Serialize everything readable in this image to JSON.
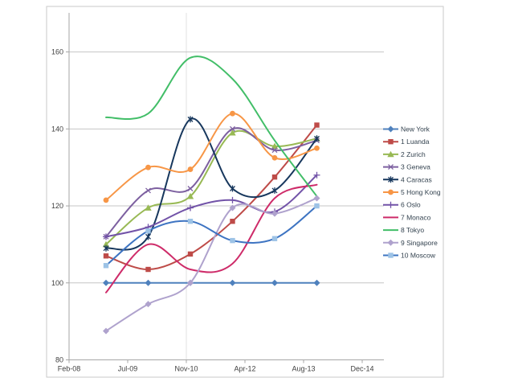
{
  "window": {
    "background": "#FFFFFF",
    "chart_border_color": "#C9C9C9",
    "axis_line_color": "#A6A6A6",
    "gridline_color": "#C6C6C6",
    "faint_vertical_gridline_color": "#E0E0E0",
    "text_color": "#3F3F3F",
    "legend_text_color": "#33424F"
  },
  "chart_data": {
    "type": "line",
    "title": "",
    "xlabel": "",
    "ylabel": "",
    "grid": "horizontal",
    "legend_position": "right",
    "x_axis": {
      "tick_labels": [
        "Feb-08",
        "Jul-09",
        "Nov-10",
        "Apr-12",
        "Aug-13",
        "Dec-14"
      ]
    },
    "y_axis": {
      "tick_labels": [
        "80",
        "100",
        "120",
        "140",
        "160"
      ],
      "tick_values": [
        80,
        100,
        120,
        140,
        160
      ],
      "min": 80,
      "max": 170
    },
    "x_points_estimated": [
      "Dec-08",
      "Dec-09",
      "Nov-10",
      "Nov-11",
      "Nov-12",
      "Nov-13"
    ],
    "series": [
      {
        "name": "New York",
        "color": "#4F81BD",
        "marker": "diamond",
        "marker_fill": "#4F81BD",
        "values": [
          100,
          100,
          100,
          100,
          100,
          100
        ]
      },
      {
        "name": "1 Luanda",
        "color": "#BE4B48",
        "marker": "square",
        "marker_fill": "#BE4B48",
        "values": [
          107,
          103.5,
          107.5,
          116,
          127.5,
          141
        ]
      },
      {
        "name": "2 Zurich",
        "color": "#98B954",
        "marker": "triangle",
        "marker_fill": "#98B954",
        "values": [
          110,
          119.5,
          122.5,
          139,
          135.5,
          137.5
        ]
      },
      {
        "name": "3 Geneva",
        "color": "#7D60A0",
        "marker": "x",
        "marker_fill": "#7D60A0",
        "values": [
          112,
          124,
          124.5,
          140,
          134.5,
          137
        ]
      },
      {
        "name": "4 Caracas",
        "color": "#17375D",
        "marker": "asterisk",
        "marker_fill": "#17375D",
        "values": [
          109,
          112,
          142.5,
          124.5,
          124,
          137.5
        ]
      },
      {
        "name": "5 Hong Kong",
        "color": "#F79646",
        "marker": "circle",
        "marker_fill": "#F79646",
        "values": [
          121.5,
          130,
          129.5,
          144,
          132.5,
          135
        ]
      },
      {
        "name": "6 Oslo",
        "color": "#7253A8",
        "marker": "plus",
        "marker_fill": "#7253A8",
        "values": [
          112,
          114.5,
          119.5,
          121.5,
          118.5,
          128
        ]
      },
      {
        "name": "7 Monaco",
        "color": "#CE2B69",
        "marker": "none",
        "marker_fill": "#CE2B69",
        "values": [
          97.5,
          110,
          103.5,
          105,
          122,
          125.5
        ]
      },
      {
        "name": "8 Tokyo",
        "color": "#42BE68",
        "marker": "none",
        "marker_fill": "#42BE68",
        "values": [
          143,
          144,
          158.5,
          153,
          137,
          122.5
        ]
      },
      {
        "name": "9 Singapore",
        "color": "#AFA2CD",
        "marker": "diamond",
        "marker_fill": "#AFA2CD",
        "values": [
          87.5,
          94.5,
          100,
          119.5,
          118,
          122
        ]
      },
      {
        "name": "10 Moscow",
        "color": "#3E74C2",
        "marker": "square",
        "marker_fill": "#9DC3E6",
        "values": [
          104.5,
          113.5,
          116,
          111,
          111.5,
          120
        ]
      }
    ]
  }
}
